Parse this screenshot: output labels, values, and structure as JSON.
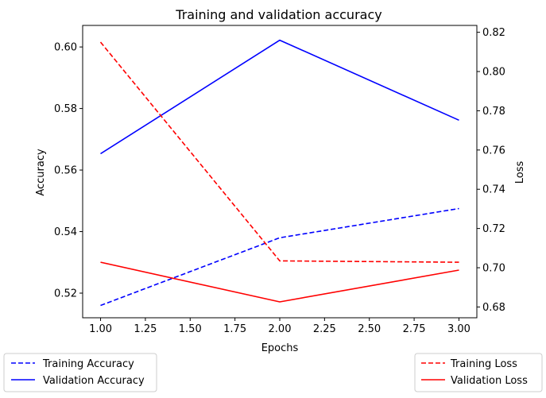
{
  "chart_data": {
    "type": "line",
    "title": "Training and validation accuracy",
    "xlabel": "Epochs",
    "ylabel_left": "Accuracy",
    "ylabel_right": "Loss",
    "xlim": [
      0.9,
      3.1
    ],
    "ylim_left": [
      0.512,
      0.607
    ],
    "ylim_right": [
      0.6745,
      0.8235
    ],
    "x_ticks": [
      "1.00",
      "1.25",
      "1.50",
      "1.75",
      "2.00",
      "2.25",
      "2.50",
      "2.75",
      "3.00"
    ],
    "y_left_ticks": [
      "0.52",
      "0.54",
      "0.56",
      "0.58",
      "0.60"
    ],
    "y_right_ticks": [
      "0.68",
      "0.70",
      "0.72",
      "0.74",
      "0.76",
      "0.78",
      "0.80",
      "0.82"
    ],
    "grid": false,
    "series": [
      {
        "name": "Training Accuracy",
        "axis": "left",
        "color": "#0000ff",
        "style": "dashed",
        "x": [
          1,
          2,
          3
        ],
        "values": [
          0.516,
          0.538,
          0.5475
        ]
      },
      {
        "name": "Validation Accuracy",
        "axis": "left",
        "color": "#0000ff",
        "style": "solid",
        "x": [
          1,
          2,
          3
        ],
        "values": [
          0.5653,
          0.6022,
          0.5762
        ]
      },
      {
        "name": "Training Loss",
        "axis": "right",
        "color": "#ff0000",
        "style": "dashed",
        "x": [
          1,
          2,
          3
        ],
        "values": [
          0.815,
          0.7035,
          0.7028
        ]
      },
      {
        "name": "Validation Loss",
        "axis": "right",
        "color": "#ff0000",
        "style": "solid",
        "x": [
          1,
          2,
          3
        ],
        "values": [
          0.7028,
          0.6826,
          0.6988
        ]
      }
    ],
    "legend_left_placement": "below-left",
    "legend_right_placement": "below-right"
  }
}
